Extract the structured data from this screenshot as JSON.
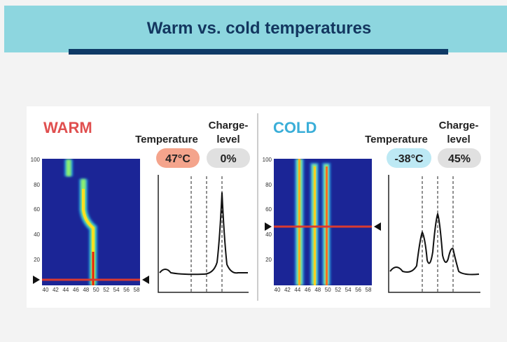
{
  "header": {
    "title": "Warm vs. cold temperatures"
  },
  "panels": [
    {
      "label": "WARM",
      "temperature_label": "Temperature",
      "charge_label": [
        "Charge-",
        "level"
      ],
      "temperature": "47°C",
      "charge": "0%",
      "yticks": [
        "100",
        "80",
        "60",
        "40",
        "20"
      ],
      "xticks": [
        "40",
        "42",
        "44",
        "46",
        "48",
        "50",
        "52",
        "54",
        "56",
        "58"
      ]
    },
    {
      "label": "COLD",
      "temperature_label": "Temperature",
      "charge_label": [
        "Charge-",
        "level"
      ],
      "temperature": "-38°C",
      "charge": "45%",
      "yticks": [
        "100",
        "80",
        "60",
        "40",
        "20"
      ],
      "xticks": [
        "40",
        "42",
        "44",
        "46",
        "48",
        "50",
        "52",
        "54",
        "56",
        "58"
      ]
    }
  ]
}
